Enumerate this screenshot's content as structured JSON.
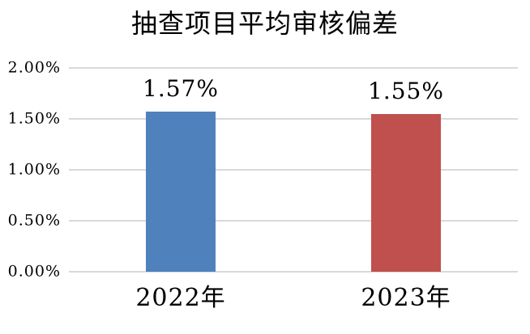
{
  "chart_data": {
    "type": "bar",
    "title": "抽查项目平均审核偏差",
    "categories": [
      "2022年",
      "2023年"
    ],
    "values": [
      1.57,
      1.55
    ],
    "value_labels": [
      "1.57%",
      "1.55%"
    ],
    "series": [
      {
        "name": "抽查项目平均审核偏差",
        "values": [
          1.57,
          1.55
        ]
      }
    ],
    "bar_colors": [
      "#4F81BD",
      "#C0504D"
    ],
    "xlabel": "",
    "ylabel": "",
    "ylim": [
      0,
      2.0
    ],
    "yticks": [
      0.0,
      0.5,
      1.0,
      1.5,
      2.0
    ],
    "ytick_labels": [
      "0.00%",
      "0.50%",
      "1.00%",
      "1.50%",
      "2.00%"
    ],
    "grid": "horizontal-on",
    "legend": "none",
    "gridline_color": "#D9D9D9",
    "background_color": "#FFFFFF",
    "text_color": "#000000"
  }
}
